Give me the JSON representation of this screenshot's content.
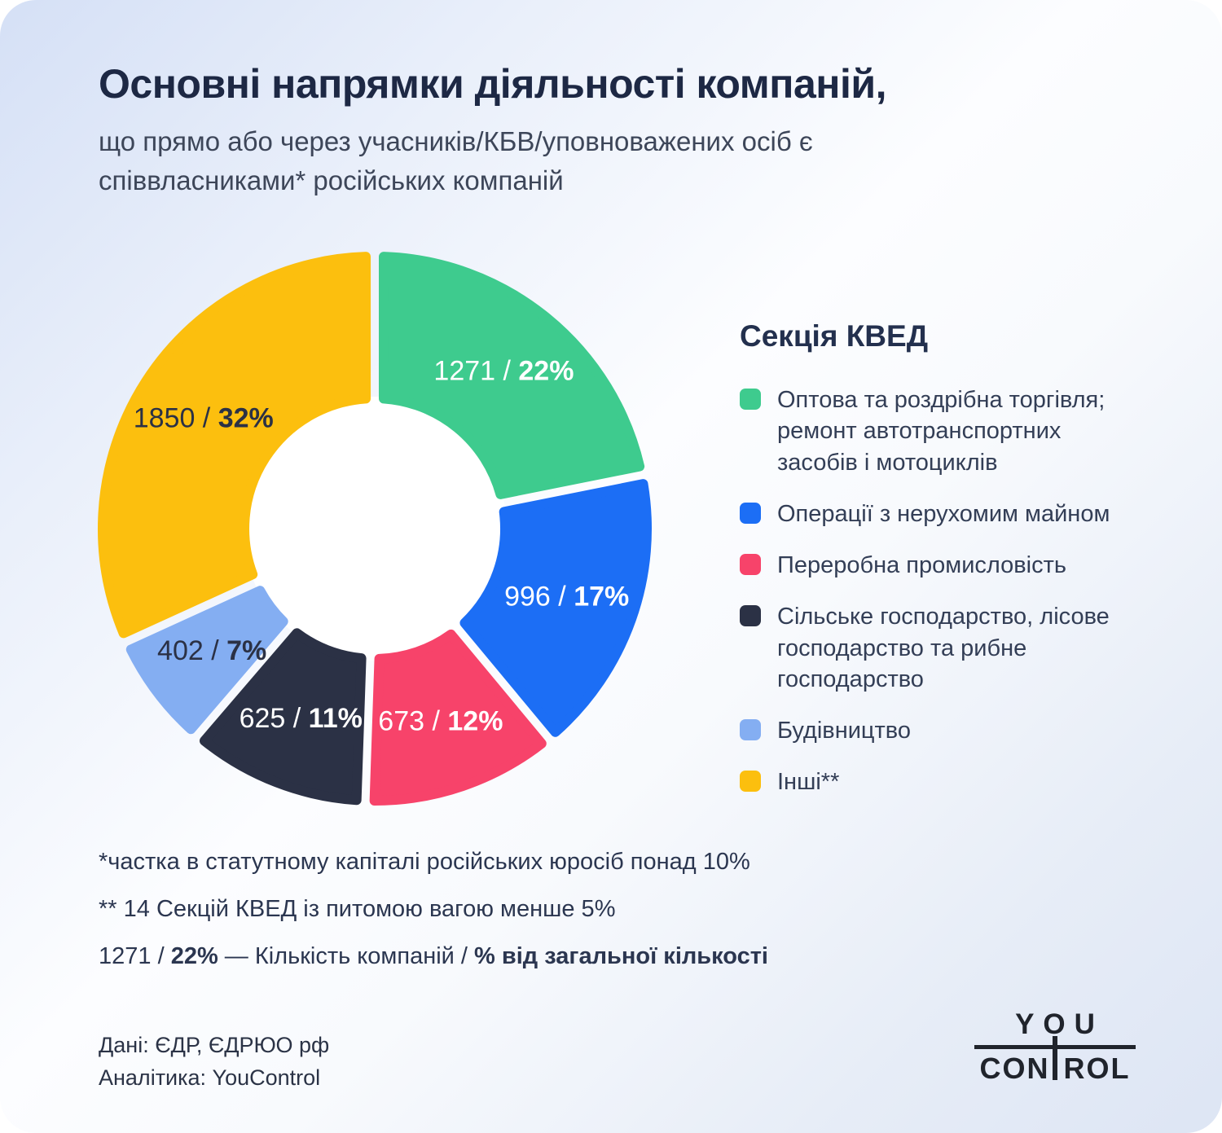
{
  "header": {
    "title": "Основні напрямки діяльності компаній,",
    "subtitle": "що прямо або через учасників/КБВ/уповноважених осіб є\nспіввласниками* російських компаній"
  },
  "chart_data": {
    "type": "donut",
    "legend_title": "Секція КВЕД",
    "legend_position": "right",
    "start_angle_deg": 0,
    "direction": "clockwise",
    "inner_radius_ratio": 0.47,
    "label_format": "value / percent",
    "segments": [
      {
        "label": "Оптова та роздрібна торгівля; ремонт автотранспортних засобів і мотоциклів",
        "value": 1271,
        "percent": 22,
        "display": "1271 / 22%",
        "color": "#3ecb8e",
        "label_color": "#ffffff"
      },
      {
        "label": "Операції з нерухомим майном",
        "value": 996,
        "percent": 17,
        "display": "996 / 17%",
        "color": "#1c6ef5",
        "label_color": "#ffffff"
      },
      {
        "label": "Переробна промисловість",
        "value": 673,
        "percent": 12,
        "display": "673 / 12%",
        "color": "#f7436a",
        "label_color": "#ffffff"
      },
      {
        "label": "Сільське господарство, лісове господарство та рибне господарство",
        "value": 625,
        "percent": 11,
        "display": "625 / 11%",
        "color": "#2b3145",
        "label_color": "#ffffff"
      },
      {
        "label": "Будівництво",
        "value": 402,
        "percent": 7,
        "display": "402 / 7%",
        "color": "#84aef2",
        "label_color": "#2b3145"
      },
      {
        "label": "Інші**",
        "value": 1850,
        "percent": 32,
        "display": "1850 / 32%",
        "color": "#fcbf0e",
        "label_color": "#2b3145"
      }
    ],
    "colors": {
      "hole": "#ffffff",
      "title_text": "#1d2844",
      "body_text": "#333e56"
    }
  },
  "footnotes": {
    "line1": "*частка в статутному капіталі російських юросіб понад 10%",
    "line2": "** 14 Секцій КВЕД із питомою вагою менше 5%",
    "line3": {
      "value_part": "1271 / ",
      "percent_part": "22%",
      "middle_part": " — Кількість компаній / ",
      "bold_part": "% від загальної кількості"
    }
  },
  "footer": {
    "data_line": "Дані: ЄДР, ЄДРЮО рф",
    "analytics_line": "Аналітика: YouControl",
    "logo": {
      "top": "YOU",
      "bottom_left": "CON",
      "bottom_right": "ROL"
    }
  }
}
